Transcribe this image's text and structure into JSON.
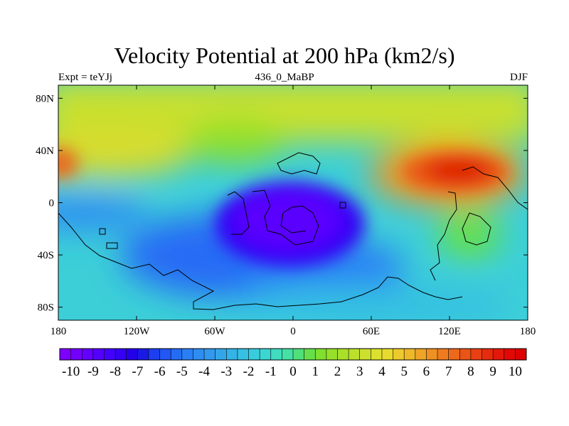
{
  "title": "Velocity Potential at 200 hPa (km2/s)",
  "subtitle_left": "Expt = teYJj",
  "subtitle_center": "436_0_MaBP",
  "subtitle_right": "DJF",
  "chart_data": {
    "type": "heatmap",
    "title": "Velocity Potential at 200 hPa (km2/s)",
    "x_ticks": [
      {
        "value": -180,
        "label": "180"
      },
      {
        "value": -120,
        "label": "120W"
      },
      {
        "value": -60,
        "label": "60W"
      },
      {
        "value": 0,
        "label": "0"
      },
      {
        "value": 60,
        "label": "60E"
      },
      {
        "value": 120,
        "label": "120E"
      },
      {
        "value": 180,
        "label": "180"
      }
    ],
    "y_ticks": [
      {
        "value": 80,
        "label": "80N"
      },
      {
        "value": 40,
        "label": "40N"
      },
      {
        "value": 0,
        "label": "0"
      },
      {
        "value": -40,
        "label": "40S"
      },
      {
        "value": -80,
        "label": "80S"
      }
    ],
    "xlim": [
      -180,
      180
    ],
    "ylim": [
      -90,
      90
    ],
    "colorbar": {
      "range": [
        -10.5,
        10.5
      ],
      "step": 0.5,
      "labels": [
        "-10",
        "-9",
        "-8",
        "-7",
        "-6",
        "-5",
        "-4",
        "-3",
        "-2",
        "-1",
        "0",
        "1",
        "2",
        "3",
        "4",
        "5",
        "6",
        "7",
        "8",
        "9",
        "10"
      ],
      "colors": [
        "#7f00ff",
        "#7300ff",
        "#6300ff",
        "#5400ff",
        "#4400ff",
        "#3500f5",
        "#2400ea",
        "#1a1ae6",
        "#1e3ff0",
        "#2256f5",
        "#256cf5",
        "#2b7ff5",
        "#2f8df2",
        "#3299ee",
        "#33a6ea",
        "#34b3e6",
        "#36c0e2",
        "#38ccdd",
        "#3cd6d2",
        "#3fdcc0",
        "#44e0a6",
        "#50e07a",
        "#66e04a",
        "#7fe030",
        "#96e02a",
        "#abe02a",
        "#bce02c",
        "#cde02e",
        "#dde02e",
        "#e8da2e",
        "#ecc92c",
        "#eeb82a",
        "#eea426",
        "#ee9022",
        "#ee7c1e",
        "#ec681a",
        "#ea5416",
        "#e84012",
        "#e62c0e",
        "#e4180a",
        "#e20806",
        "#dd0000"
      ]
    },
    "field_features": [
      {
        "name": "upper-divergence center",
        "lon": -15,
        "lat": -15,
        "value": -10
      },
      {
        "name": "convergence center",
        "lon": 140,
        "lat": 23,
        "value": 9
      },
      {
        "name": "secondary high",
        "lon": -178,
        "lat": 30,
        "value": 7
      },
      {
        "name": "secondary high",
        "lon": 120,
        "lat": -22,
        "value": 2
      }
    ]
  }
}
